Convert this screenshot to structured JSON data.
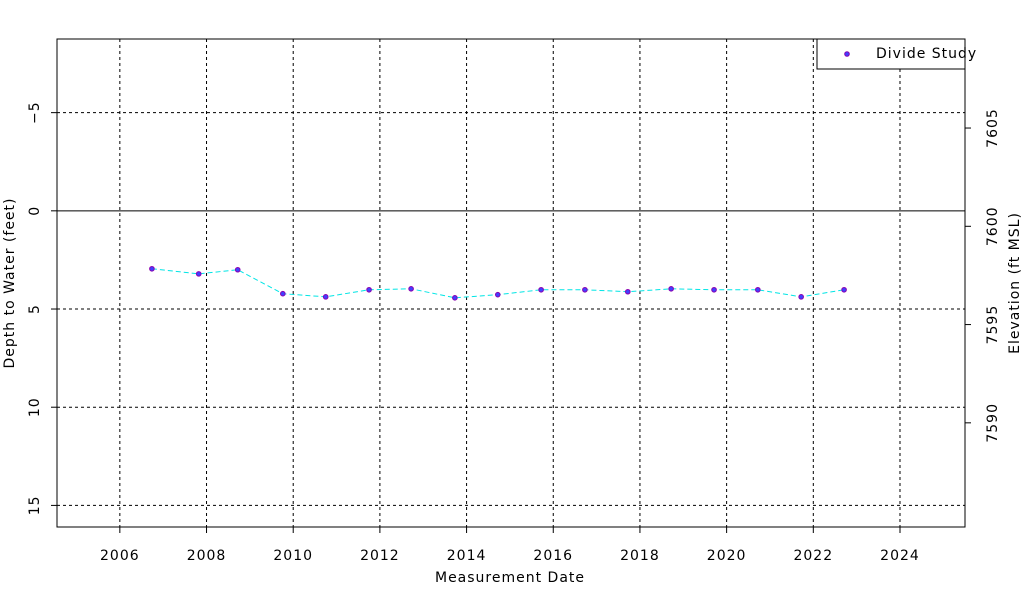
{
  "chart_data": {
    "type": "line",
    "x_label": "Measurement Date",
    "y_label": "Depth to Water (feet)",
    "y2_label": "Elevation (ft MSL)",
    "x": [
      2006.74,
      2007.82,
      2008.72,
      2009.76,
      2010.75,
      2011.75,
      2012.72,
      2013.73,
      2014.72,
      2015.72,
      2016.73,
      2017.72,
      2018.72,
      2019.71,
      2020.72,
      2021.72,
      2022.71
    ],
    "series": [
      {
        "name": "Divide Study",
        "color": "#00e5e5",
        "marker_color": "#8b00b0",
        "values": [
          2.95,
          3.21,
          3.0,
          4.22,
          4.38,
          4.02,
          3.97,
          4.43,
          4.27,
          4.02,
          4.02,
          4.12,
          3.97,
          4.02,
          4.02,
          4.38,
          4.02
        ]
      }
    ],
    "xlim": [
      2004.55,
      2025.5
    ],
    "xticks": [
      2006,
      2008,
      2010,
      2012,
      2014,
      2016,
      2018,
      2020,
      2022,
      2024
    ],
    "ylim": [
      16.1,
      -8.75
    ],
    "yticks": [
      {
        "value": -5,
        "label": "−5"
      },
      0,
      5,
      10,
      15
    ],
    "y2lim": [
      7584.7,
      7609.53
    ],
    "y2ticks": [
      7590,
      7595,
      7600,
      7605
    ],
    "grid": true,
    "legend": "top-right"
  }
}
